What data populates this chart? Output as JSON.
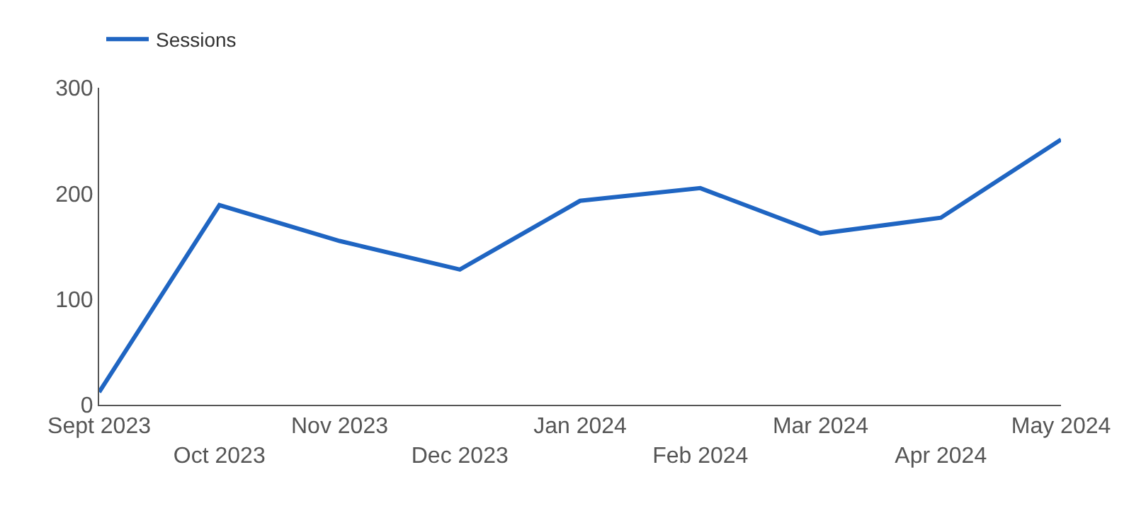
{
  "chart_data": {
    "type": "line",
    "categories": [
      "Sept 2023",
      "Oct 2023",
      "Nov 2023",
      "Dec 2023",
      "Jan 2024",
      "Feb 2024",
      "Mar 2024",
      "Apr 2024",
      "May 2024"
    ],
    "series": [
      {
        "name": "Sessions",
        "color": "#1f65c2",
        "values": [
          12,
          189,
          155,
          128,
          193,
          205,
          162,
          177,
          251
        ]
      }
    ],
    "ylim": [
      0,
      300
    ],
    "yticks": [
      0,
      100,
      200,
      300
    ],
    "legend": "top left",
    "marker": "none",
    "line_style": "solid"
  }
}
